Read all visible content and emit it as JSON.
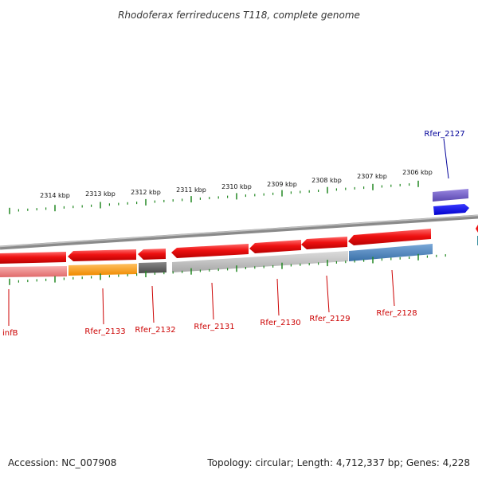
{
  "title": "Rhodoferax ferrireducens T118, complete genome",
  "footer": {
    "accession": "Accession: NC_007908",
    "topology": "Topology: circular; Length: 4,712,337 bp; Genes: 4,228"
  },
  "colors": {
    "forward_gene": "#ee1111",
    "backbone": "#888888",
    "tick": "#228822",
    "label_bottom": "#cc0000",
    "label_top": "#000099"
  },
  "scale_ticks": [
    {
      "label": "2314 kbp"
    },
    {
      "label": "2313 kbp"
    },
    {
      "label": "2312 kbp"
    },
    {
      "label": "2311 kbp"
    },
    {
      "label": "2310 kbp"
    },
    {
      "label": "2309 kbp"
    },
    {
      "label": "2308 kbp"
    },
    {
      "label": "2307 kbp"
    },
    {
      "label": "2306 kbp"
    }
  ],
  "gene_labels_bottom": [
    {
      "name": "infB"
    },
    {
      "name": "Rfer_2133"
    },
    {
      "name": "Rfer_2132"
    },
    {
      "name": "Rfer_2131"
    },
    {
      "name": "Rfer_2130"
    },
    {
      "name": "Rfer_2129"
    },
    {
      "name": "Rfer_2128"
    }
  ],
  "gene_labels_top": [
    {
      "name": "Rfer_2127"
    }
  ]
}
